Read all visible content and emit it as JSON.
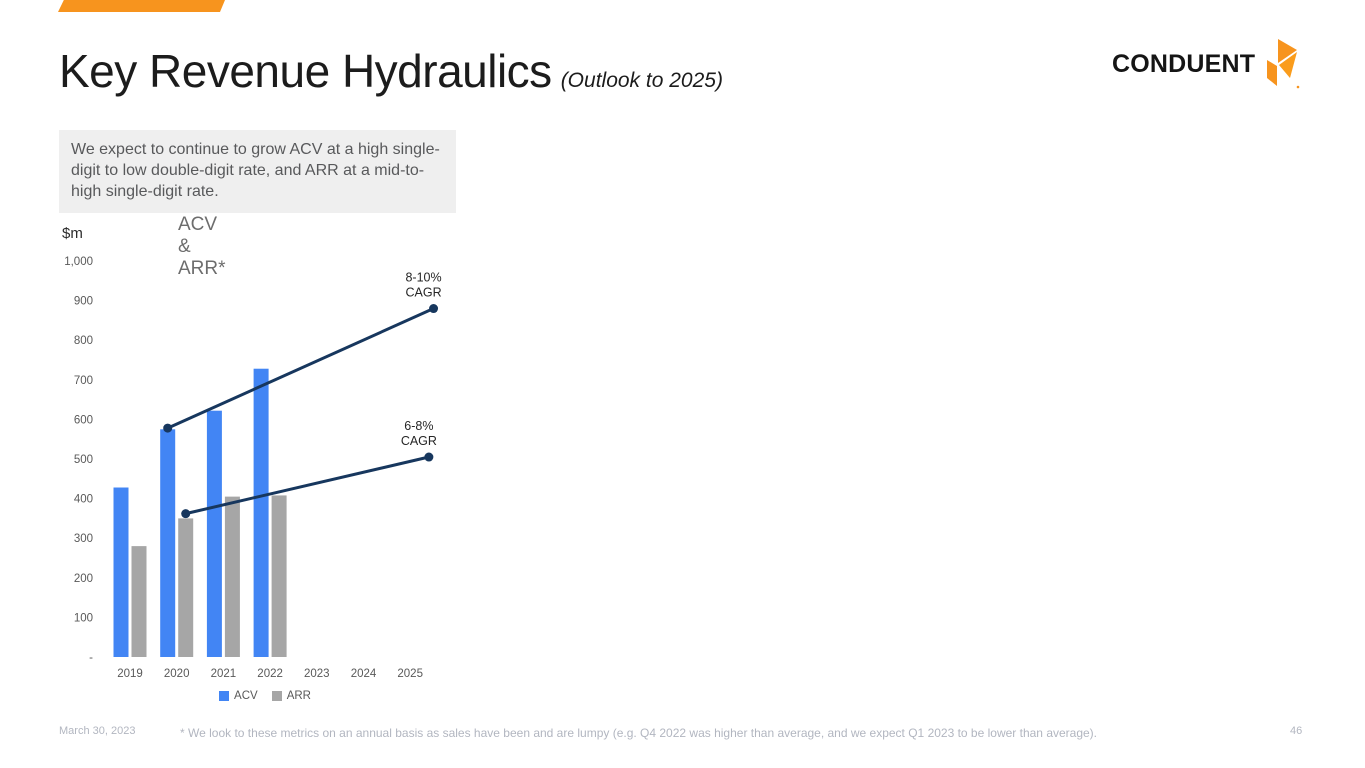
{
  "slide": {
    "title": "Key Revenue Hydraulics",
    "subtitle": "(Outlook to 2025)",
    "logo": {
      "text": "CONDUENT"
    },
    "callout": "We expect to continue to grow ACV at a high single-digit to low double-digit rate, and ARR at a mid-to-high single-digit rate.",
    "footer": {
      "date": "March 30, 2023",
      "footnote": "* We look to these metrics on an annual basis as sales have been and are lumpy (e.g. Q4 2022 was higher than average, and we expect Q1 2023 to be lower than average).",
      "page_number": "46"
    }
  },
  "colors": {
    "accent_orange": "#F7941E",
    "acv_blue": "#4285F4",
    "arr_gray": "#A6A6A6",
    "trend_navy": "#17375E",
    "callout_bg": "#EFEFEF",
    "muted_text": "#595959",
    "footer_text": "#B2B6C0"
  },
  "chart_data": {
    "type": "bar",
    "title": "ACV & ARR*",
    "unit_label": "$m",
    "categories": [
      "2019",
      "2020",
      "2021",
      "2022",
      "2023",
      "2024",
      "2025"
    ],
    "series": [
      {
        "name": "ACV",
        "color_key": "acv_blue",
        "values": [
          428,
          575,
          622,
          728,
          null,
          null,
          null
        ]
      },
      {
        "name": "ARR",
        "color_key": "arr_gray",
        "values": [
          280,
          350,
          405,
          408,
          null,
          null,
          null
        ]
      }
    ],
    "y_ticks": [
      "1,000",
      "900",
      "800",
      "700",
      "600",
      "500",
      "400",
      "300",
      "200",
      "100",
      "-"
    ],
    "ylim": [
      0,
      1000
    ],
    "grid": false,
    "legend_position": "bottom",
    "trend_lines": [
      {
        "series": "ACV",
        "label_lines": [
          "8-10%",
          "CAGR"
        ],
        "from": {
          "year": 2020,
          "value": 578
        },
        "to": {
          "year": 2025.5,
          "value": 880
        }
      },
      {
        "series": "ARR",
        "label_lines": [
          "6-8%",
          "CAGR"
        ],
        "from": {
          "year": 2020,
          "value": 362
        },
        "to": {
          "year": 2025.4,
          "value": 505
        }
      }
    ],
    "legend": [
      "ACV",
      "ARR"
    ]
  }
}
